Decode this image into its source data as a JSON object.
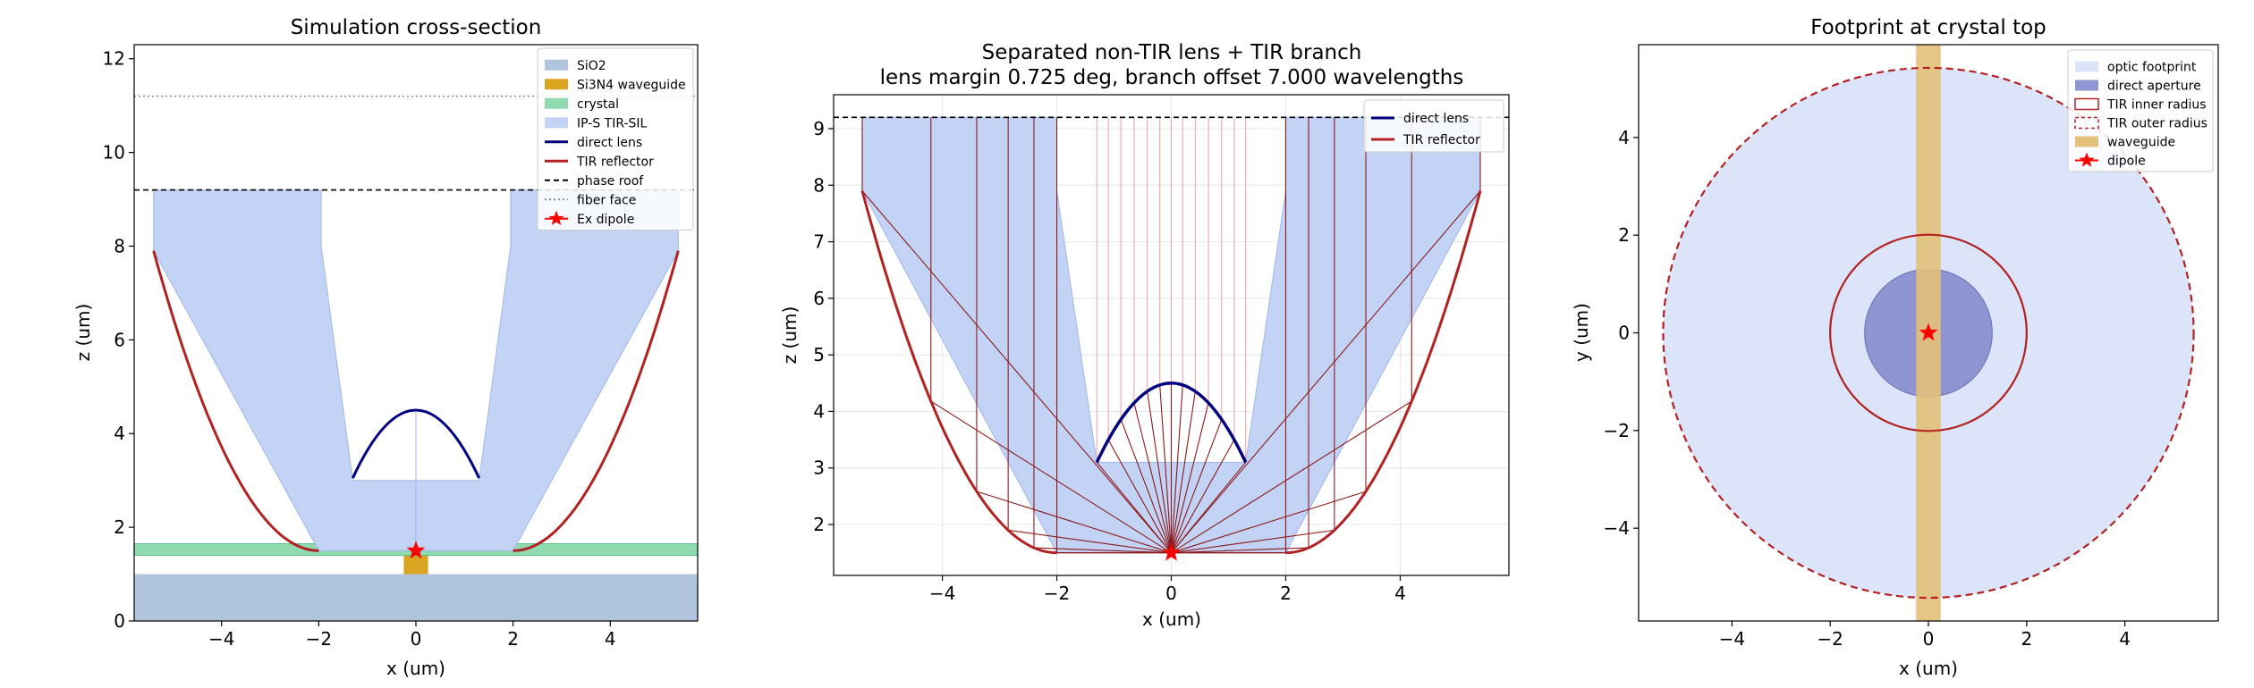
{
  "chart_data": [
    {
      "type": "diagram",
      "title": "Simulation cross-section",
      "subtitle": "",
      "xlabel": "x (um)",
      "ylabel": "z (um)",
      "xlim": [
        -5.8,
        5.8
      ],
      "ylim": [
        0,
        12.3
      ],
      "xticks": [
        -4,
        -2,
        0,
        2,
        4
      ],
      "yticks": [
        0,
        2,
        4,
        6,
        8,
        10,
        12
      ],
      "grid": false,
      "legend_position": "top-right",
      "legend": [
        "SiO2",
        "Si3N4 waveguide",
        "crystal",
        "IP-S TIR-SIL",
        "direct lens",
        "TIR reflector",
        "phase roof",
        "fiber face",
        "Ex dipole"
      ],
      "colors": {
        "sio2": "#b0c4de",
        "waveguide": "#daa520",
        "crystal": "#90dab0",
        "ips": "#c3d3f5",
        "lens": "#000080",
        "tir": "#b22222",
        "dipole": "#ff0000"
      },
      "sio2_top": 1.0,
      "waveguide": {
        "x": [
          -0.25,
          0.25
        ],
        "z": [
          1.0,
          1.4
        ]
      },
      "crystal": {
        "z": [
          1.4,
          1.65
        ]
      },
      "ips_outline": [
        [
          -5.4,
          9.2
        ],
        [
          -5.4,
          7.9
        ],
        [
          -2.0,
          1.5
        ],
        [
          2.0,
          1.5
        ],
        [
          5.4,
          7.9
        ],
        [
          5.4,
          9.2
        ],
        [
          1.95,
          9.2
        ],
        [
          1.95,
          8.0
        ],
        [
          1.3,
          3.0
        ],
        [
          -1.3,
          3.0
        ],
        [
          -1.95,
          8.0
        ],
        [
          -1.95,
          9.2
        ]
      ],
      "direct_lens": {
        "cx": 0,
        "base_z": 3.05,
        "apex_z": 4.5,
        "half_width": 1.3
      },
      "tir_reflector": {
        "vertex_x": 2.0,
        "vertex_z": 1.5,
        "end_x": 5.4,
        "end_z": 7.9
      },
      "phase_roof_z": 9.2,
      "fiber_face_z": 11.2,
      "dipole": [
        0,
        1.5
      ]
    },
    {
      "type": "diagram",
      "title": "Separated non-TIR lens + TIR branch",
      "subtitle": "lens margin 0.725 deg, branch offset 7.000 wavelengths",
      "xlabel": "x (um)",
      "ylabel": "z (um)",
      "xlim": [
        -5.9,
        5.9
      ],
      "ylim": [
        1.1,
        9.6
      ],
      "xticks": [
        -4,
        -2,
        0,
        2,
        4
      ],
      "yticks": [
        2,
        3,
        4,
        5,
        6,
        7,
        8,
        9
      ],
      "grid": true,
      "legend_position": "top-right",
      "legend": [
        "direct lens",
        "TIR reflector"
      ],
      "colors": {
        "lens": "#000080",
        "tir": "#b22222",
        "ray": "#8b1a1a",
        "ips": "#c3d3f5"
      },
      "ips_outline": [
        [
          -5.4,
          9.2
        ],
        [
          -5.4,
          7.9
        ],
        [
          -2.0,
          1.5
        ],
        [
          2.0,
          1.5
        ],
        [
          5.4,
          7.9
        ],
        [
          5.4,
          9.2
        ],
        [
          2.0,
          9.2
        ],
        [
          2.0,
          7.9
        ],
        [
          1.3,
          3.1
        ],
        [
          -1.3,
          3.1
        ],
        [
          -2.0,
          7.9
        ],
        [
          -2.0,
          9.2
        ]
      ],
      "direct_lens": {
        "cx": 0,
        "base_z": 3.1,
        "apex_z": 4.5,
        "half_width": 1.3
      },
      "tir_reflector": {
        "vertex_x": 2.0,
        "vertex_z": 1.5,
        "end_x": 5.4,
        "end_z": 7.9
      },
      "phase_roof_z": 9.2,
      "dipole": [
        0,
        1.5
      ],
      "tir_rays_x": [
        2.0,
        2.4,
        2.85,
        3.4,
        4.2,
        5.4
      ],
      "lens_rays_x": [
        -1.3,
        -1.1,
        -0.88,
        -0.65,
        -0.42,
        -0.2,
        0.0,
        0.2,
        0.42,
        0.65,
        0.88,
        1.1,
        1.3
      ]
    },
    {
      "type": "diagram",
      "title": "Footprint at crystal top",
      "subtitle": "",
      "xlabel": "x (um)",
      "ylabel": "y (um)",
      "xlim": [
        -5.9,
        5.9
      ],
      "ylim": [
        -5.9,
        5.9
      ],
      "xticks": [
        -4,
        -2,
        0,
        2,
        4
      ],
      "yticks": [
        -4,
        -2,
        0,
        2,
        4
      ],
      "grid": false,
      "legend_position": "top-right",
      "legend": [
        "optic footprint",
        "direct aperture",
        "TIR inner radius",
        "TIR outer radius",
        "waveguide",
        "dipole"
      ],
      "colors": {
        "footprint": "#dbe4f8",
        "aperture": "#8f95d0",
        "tir": "#b22222",
        "waveguide": "#e3c07a",
        "dipole": "#ff0000"
      },
      "optic_radius": 5.4,
      "direct_radius": 1.3,
      "tir_inner_radius": 2.0,
      "tir_outer_radius": 5.4,
      "waveguide_half_width": 0.25,
      "dipole": [
        0,
        0
      ]
    }
  ]
}
